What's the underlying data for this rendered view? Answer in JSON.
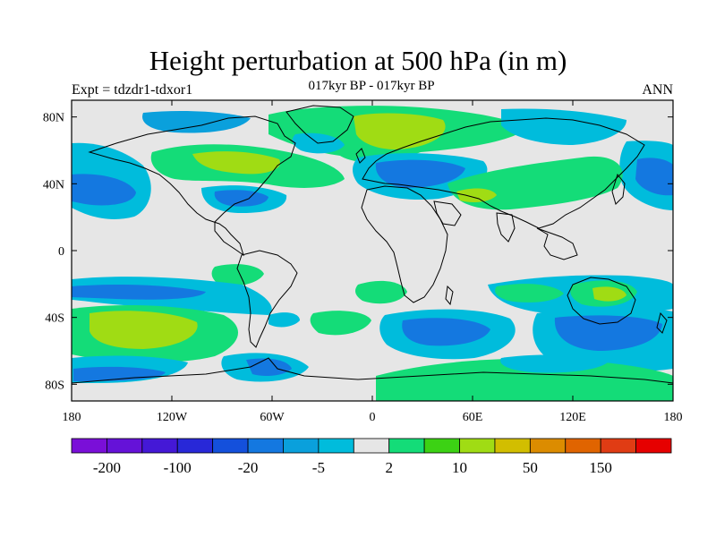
{
  "title": "Height perturbation at 500 hPa (in m)",
  "subtitle": "017kyr BP - 017kyr BP",
  "left_label": "Expt = tdzdr1-tdxor1",
  "right_label": "ANN",
  "lat_ticks": [
    {
      "value": 80,
      "label": "80N"
    },
    {
      "value": 40,
      "label": "40N"
    },
    {
      "value": 0,
      "label": "0"
    },
    {
      "value": -40,
      "label": "40S"
    },
    {
      "value": -80,
      "label": "80S"
    }
  ],
  "lon_ticks": [
    {
      "value": -180,
      "label": "180"
    },
    {
      "value": -120,
      "label": "120W"
    },
    {
      "value": -60,
      "label": "60W"
    },
    {
      "value": 0,
      "label": "0"
    },
    {
      "value": 60,
      "label": "60E"
    },
    {
      "value": 120,
      "label": "120E"
    },
    {
      "value": 180,
      "label": "180"
    }
  ],
  "colorbar": {
    "colors": [
      "#7a0fd8",
      "#6512d8",
      "#4418d6",
      "#2828d8",
      "#1450dc",
      "#1478e0",
      "#0aa0dc",
      "#00bcdc",
      "#e6e6e6",
      "#14dc78",
      "#3cd214",
      "#a0dc14",
      "#d2be00",
      "#dc8c00",
      "#e06400",
      "#e03c14",
      "#e60000"
    ],
    "labels": [
      {
        "text": "-200",
        "boundary": 1
      },
      {
        "text": "-100",
        "boundary": 3
      },
      {
        "text": "-20",
        "boundary": 5
      },
      {
        "text": "-5",
        "boundary": 7
      },
      {
        "text": "2",
        "boundary": 9
      },
      {
        "text": "10",
        "boundary": 11
      },
      {
        "text": "50",
        "boundary": 13
      },
      {
        "text": "150",
        "boundary": 15
      }
    ]
  },
  "field_colors": {
    "background": "#e6e6e6",
    "cyan": "#00bcdc",
    "light_blue": "#0aa0dc",
    "blue": "#1478e0",
    "green": "#14dc78",
    "bright_green": "#3cd214",
    "yellow_green": "#a0dc14",
    "coast": "#000000"
  }
}
